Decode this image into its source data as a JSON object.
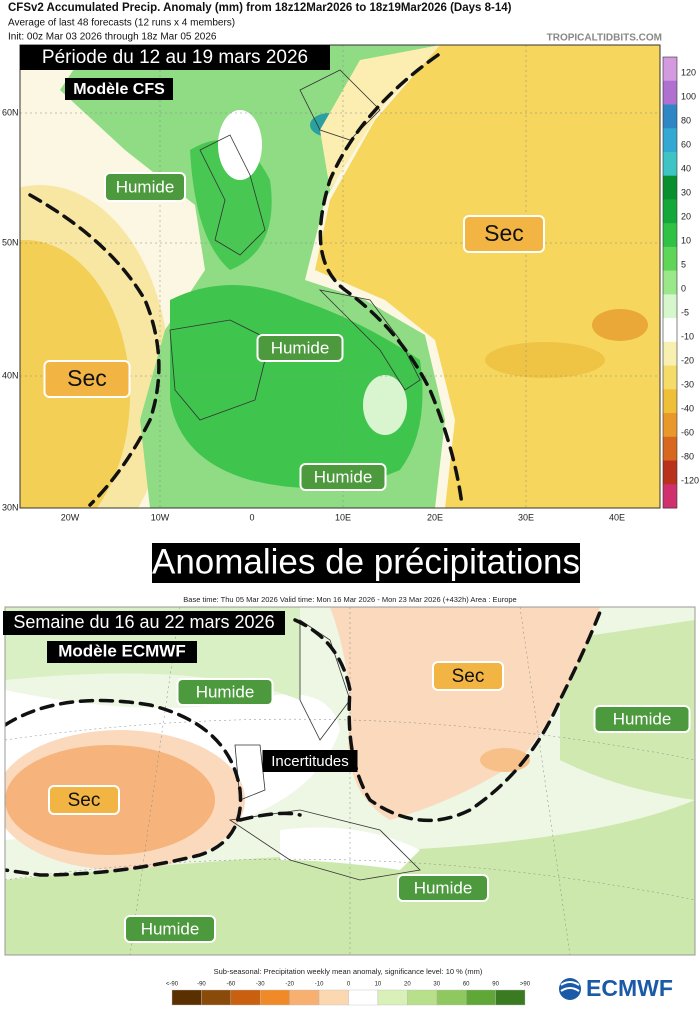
{
  "top_map": {
    "header": {
      "title": "CFSv2 Accumulated Precip. Anomaly (mm) from 18z12Mar2026 to 18z19Mar2026 (Days 8-14)",
      "subtitle": "Average of last 48 forecasts (12 runs x 4 members)",
      "init": "Init: 00z Mar 03 2026 through 18z Mar 05 2026",
      "source": "TROPICALTIDBITS.COM"
    },
    "period": "Période du 12 au 19 mars 2026",
    "model": "Modèle CFS",
    "labels": [
      "Humide",
      "Humide",
      "Humide",
      "Sec",
      "Sec"
    ],
    "lat_labels": [
      "60N",
      "50N",
      "40N",
      "30N"
    ],
    "lon_labels": [
      "20W",
      "10W",
      "0",
      "10E",
      "20E",
      "30E",
      "40E"
    ],
    "colorbar_labels": [
      "120",
      "100",
      "80",
      "60",
      "40",
      "30",
      "20",
      "10",
      "5",
      "0",
      "-5",
      "-10",
      "-20",
      "-30",
      "-40",
      "-60",
      "-80",
      "-120"
    ],
    "colorbar_colors": [
      "#d49ae0",
      "#b070d0",
      "#2f86c4",
      "#33a8d2",
      "#3fc4c6",
      "#0a8f2e",
      "#14a83a",
      "#2fc244",
      "#5fd658",
      "#9be88a",
      "#d6f6cc",
      "#ffffff",
      "#f8f0b0",
      "#f5dc6a",
      "#efbf38",
      "#e8992a",
      "#d8681f",
      "#b8321c",
      "#d0306e"
    ]
  },
  "title": "Anomalies de précipitations",
  "bottom_map": {
    "header": "Base time: Thu 05 Mar 2026 Valid time: Mon 16 Mar 2026 - Mon 23 Mar 2026 (+432h) Area : Europe",
    "period": "Semaine du 16 au 22 mars 2026",
    "model": "Modèle ECMWF",
    "labels": [
      "Humide",
      "Humide",
      "Humide",
      "Humide",
      "Sec",
      "Sec",
      "Incertitudes"
    ],
    "legend_title": "Sub-seasonal: Precipitation weekly mean anomaly, significance level: 10 % (mm)",
    "legend_labels": [
      "<-90",
      "-90",
      "-60",
      "-30",
      "-20",
      "-10",
      "0",
      "10",
      "20",
      "30",
      "60",
      "90",
      ">90"
    ],
    "legend_colors": [
      "#5a3000",
      "#8a4a0a",
      "#c86010",
      "#f08a28",
      "#f8b070",
      "#fcd8b0",
      "#ffffff",
      "#d9f0b8",
      "#b8e08a",
      "#90c860",
      "#5fa838",
      "#3a7a20"
    ],
    "logo": "ECMWF"
  }
}
